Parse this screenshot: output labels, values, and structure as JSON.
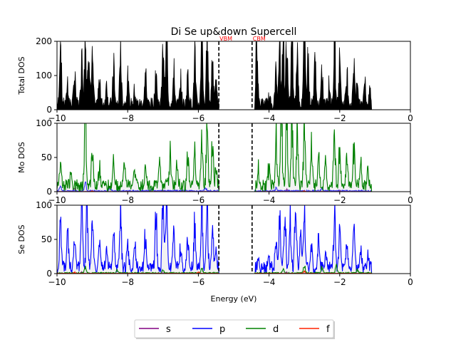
{
  "chart_data": {
    "type": "line",
    "title": "Di Se up&down Supercell",
    "xlabel": "Energy (eV)",
    "x_ticks": [
      "−10",
      "−8",
      "−6",
      "−4",
      "−2",
      "0"
    ],
    "x_tick_values": [
      -10,
      -8,
      -6,
      -4,
      -2,
      0
    ],
    "xlim": [
      -10,
      0
    ],
    "markers": [
      {
        "name": "VBM",
        "x": -5.42,
        "color": "#ff0000"
      },
      {
        "name": "CBM",
        "x": -4.48,
        "color": "#ff0000"
      }
    ],
    "legend": {
      "placement": "bottom-center",
      "columns": 4
    },
    "series_colors": {
      "s": "#800080",
      "p": "#0000ff",
      "d": "#008000",
      "f": "#ff2200",
      "total": "#000000",
      "fill": "#cccccc"
    },
    "panels": [
      {
        "ylabel": "Total DOS",
        "ylim": [
          0,
          200
        ],
        "y_ticks": [
          "0",
          "100",
          "200"
        ],
        "y_tick_values": [
          0,
          100,
          200
        ],
        "series": [
          {
            "name": "total",
            "style": "filled-black",
            "peaks": [
              [
                -9.9,
                170
              ],
              [
                -9.7,
                60
              ],
              [
                -9.5,
                90
              ],
              [
                -9.3,
                140
              ],
              [
                -9.2,
                200
              ],
              [
                -9.1,
                200
              ],
              [
                -9.0,
                120
              ],
              [
                -8.8,
                80
              ],
              [
                -8.6,
                60
              ],
              [
                -8.4,
                110
              ],
              [
                -8.2,
                150
              ],
              [
                -8.0,
                70
              ],
              [
                -7.8,
                50
              ],
              [
                -7.5,
                90
              ],
              [
                -7.2,
                120
              ],
              [
                -7.0,
                160
              ],
              [
                -6.9,
                200
              ],
              [
                -6.7,
                100
              ],
              [
                -6.5,
                60
              ],
              [
                -6.3,
                90
              ],
              [
                -6.1,
                140
              ],
              [
                -5.9,
                180
              ],
              [
                -5.75,
                200
              ],
              [
                -5.6,
                150
              ],
              [
                -5.5,
                60
              ],
              [
                -4.35,
                200
              ],
              [
                -4.3,
                10
              ],
              [
                -4.0,
                20
              ],
              [
                -3.8,
                90
              ],
              [
                -3.7,
                150
              ],
              [
                -3.6,
                200
              ],
              [
                -3.5,
                190
              ],
              [
                -3.35,
                200
              ],
              [
                -3.2,
                160
              ],
              [
                -3.0,
                200
              ],
              [
                -2.9,
                140
              ],
              [
                -2.7,
                120
              ],
              [
                -2.5,
                90
              ],
              [
                -2.3,
                60
              ],
              [
                -2.15,
                200
              ],
              [
                -2.0,
                140
              ],
              [
                -1.8,
                100
              ],
              [
                -1.6,
                130
              ],
              [
                -1.5,
                60
              ],
              [
                -1.3,
                70
              ],
              [
                -1.15,
                40
              ]
            ]
          }
        ]
      },
      {
        "ylabel": "Mo DOS",
        "ylim": [
          0,
          100
        ],
        "y_ticks": [
          "0",
          "50",
          "100"
        ],
        "y_tick_values": [
          0,
          50,
          100
        ],
        "series": [
          {
            "name": "s",
            "peaks": [
              [
                -9.5,
                3
              ],
              [
                -7.0,
                2
              ],
              [
                -3.5,
                3
              ],
              [
                -2.0,
                2
              ]
            ]
          },
          {
            "name": "p",
            "peaks": [
              [
                -9.9,
                6
              ],
              [
                -9.2,
                12
              ],
              [
                -8.5,
                5
              ],
              [
                -7.3,
                4
              ],
              [
                -5.8,
                6
              ],
              [
                -3.8,
                4
              ],
              [
                -2.5,
                3
              ]
            ]
          },
          {
            "name": "d",
            "peaks": [
              [
                -9.9,
                30
              ],
              [
                -9.6,
                20
              ],
              [
                -9.2,
                100
              ],
              [
                -9.0,
                60
              ],
              [
                -8.8,
                30
              ],
              [
                -8.4,
                35
              ],
              [
                -8.1,
                45
              ],
              [
                -7.8,
                25
              ],
              [
                -7.5,
                30
              ],
              [
                -7.1,
                45
              ],
              [
                -6.8,
                50
              ],
              [
                -6.6,
                35
              ],
              [
                -6.3,
                40
              ],
              [
                -6.1,
                55
              ],
              [
                -5.9,
                75
              ],
              [
                -5.75,
                100
              ],
              [
                -5.6,
                60
              ],
              [
                -5.5,
                20
              ],
              [
                -4.3,
                25
              ],
              [
                -4.0,
                30
              ],
              [
                -3.8,
                70
              ],
              [
                -3.65,
                100
              ],
              [
                -3.5,
                95
              ],
              [
                -3.35,
                100
              ],
              [
                -3.2,
                75
              ],
              [
                -3.0,
                85
              ],
              [
                -2.8,
                55
              ],
              [
                -2.6,
                45
              ],
              [
                -2.4,
                40
              ],
              [
                -2.15,
                80
              ],
              [
                -2.0,
                55
              ],
              [
                -1.8,
                45
              ],
              [
                -1.6,
                60
              ],
              [
                -1.4,
                35
              ],
              [
                -1.2,
                20
              ]
            ]
          },
          {
            "name": "f",
            "peaks": [
              [
                -9.0,
                1
              ],
              [
                -5.0,
                1
              ],
              [
                -3.0,
                1
              ]
            ]
          }
        ]
      },
      {
        "ylabel": "Se DOS",
        "ylim": [
          0,
          100
        ],
        "y_ticks": [
          "0",
          "50",
          "100"
        ],
        "y_tick_values": [
          0,
          50,
          100
        ],
        "series": [
          {
            "name": "s",
            "peaks": [
              [
                -9.3,
                2
              ],
              [
                -7.0,
                1
              ],
              [
                -3.5,
                2
              ]
            ]
          },
          {
            "name": "p",
            "peaks": [
              [
                -9.9,
                80
              ],
              [
                -9.7,
                50
              ],
              [
                -9.5,
                40
              ],
              [
                -9.3,
                100
              ],
              [
                -9.15,
                100
              ],
              [
                -9.0,
                70
              ],
              [
                -8.8,
                40
              ],
              [
                -8.6,
                30
              ],
              [
                -8.4,
                55
              ],
              [
                -8.2,
                75
              ],
              [
                -8.0,
                35
              ],
              [
                -7.8,
                30
              ],
              [
                -7.5,
                45
              ],
              [
                -7.2,
                70
              ],
              [
                -7.0,
                100
              ],
              [
                -6.9,
                95
              ],
              [
                -6.7,
                50
              ],
              [
                -6.5,
                30
              ],
              [
                -6.3,
                40
              ],
              [
                -6.1,
                60
              ],
              [
                -5.9,
                90
              ],
              [
                -5.75,
                95
              ],
              [
                -5.6,
                65
              ],
              [
                -5.5,
                25
              ],
              [
                -4.3,
                8
              ],
              [
                -4.0,
                15
              ],
              [
                -3.8,
                45
              ],
              [
                -3.7,
                65
              ],
              [
                -3.55,
                90
              ],
              [
                -3.4,
                75
              ],
              [
                -3.25,
                95
              ],
              [
                -3.1,
                60
              ],
              [
                -3.0,
                85
              ],
              [
                -2.8,
                40
              ],
              [
                -2.6,
                35
              ],
              [
                -2.4,
                30
              ],
              [
                -2.15,
                85
              ],
              [
                -2.0,
                55
              ],
              [
                -1.8,
                40
              ],
              [
                -1.6,
                60
              ],
              [
                -1.4,
                25
              ],
              [
                -1.2,
                15
              ]
            ]
          },
          {
            "name": "d",
            "peaks": [
              [
                -9.2,
                8
              ],
              [
                -8.3,
                4
              ],
              [
                -7.0,
                5
              ],
              [
                -5.9,
                6
              ],
              [
                -3.6,
                6
              ],
              [
                -3.0,
                10
              ],
              [
                -2.5,
                8
              ],
              [
                -2.1,
                10
              ],
              [
                -1.5,
                5
              ]
            ]
          },
          {
            "name": "f",
            "peaks": [
              [
                -9.5,
                2
              ],
              [
                -6.0,
                2
              ],
              [
                -3.0,
                3
              ]
            ]
          }
        ]
      }
    ]
  },
  "legend_labels": [
    "s",
    "p",
    "d",
    "f"
  ]
}
